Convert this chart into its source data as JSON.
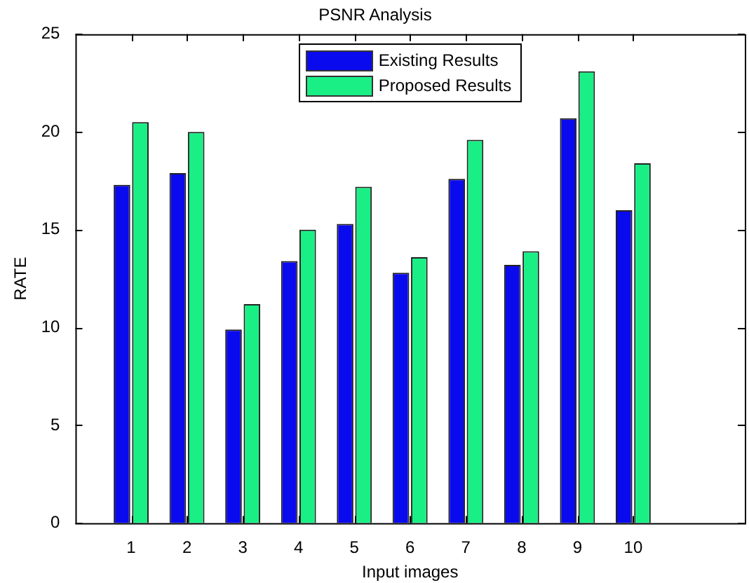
{
  "chart_data": {
    "type": "bar",
    "title": "PSNR Analysis",
    "xlabel": "Input images",
    "ylabel": "RATE",
    "x": [
      1,
      2,
      3,
      4,
      5,
      6,
      7,
      8,
      9,
      10
    ],
    "series": [
      {
        "name": "Existing Results",
        "color": "#0a0aee",
        "values": [
          17.3,
          17.9,
          9.9,
          13.4,
          15.3,
          12.8,
          17.6,
          13.2,
          20.7,
          16.0
        ]
      },
      {
        "name": "Proposed Results",
        "color": "#1aef86",
        "values": [
          20.5,
          20.0,
          11.2,
          15.0,
          17.2,
          13.6,
          19.6,
          13.9,
          23.1,
          18.4
        ]
      }
    ],
    "xlim": [
      0,
      12
    ],
    "xticks": [
      1,
      2,
      3,
      4,
      5,
      6,
      7,
      8,
      9,
      10
    ],
    "ylim": [
      0,
      25
    ],
    "yticks": [
      0,
      5,
      10,
      15,
      20,
      25
    ],
    "grid": false,
    "legend": "top"
  }
}
